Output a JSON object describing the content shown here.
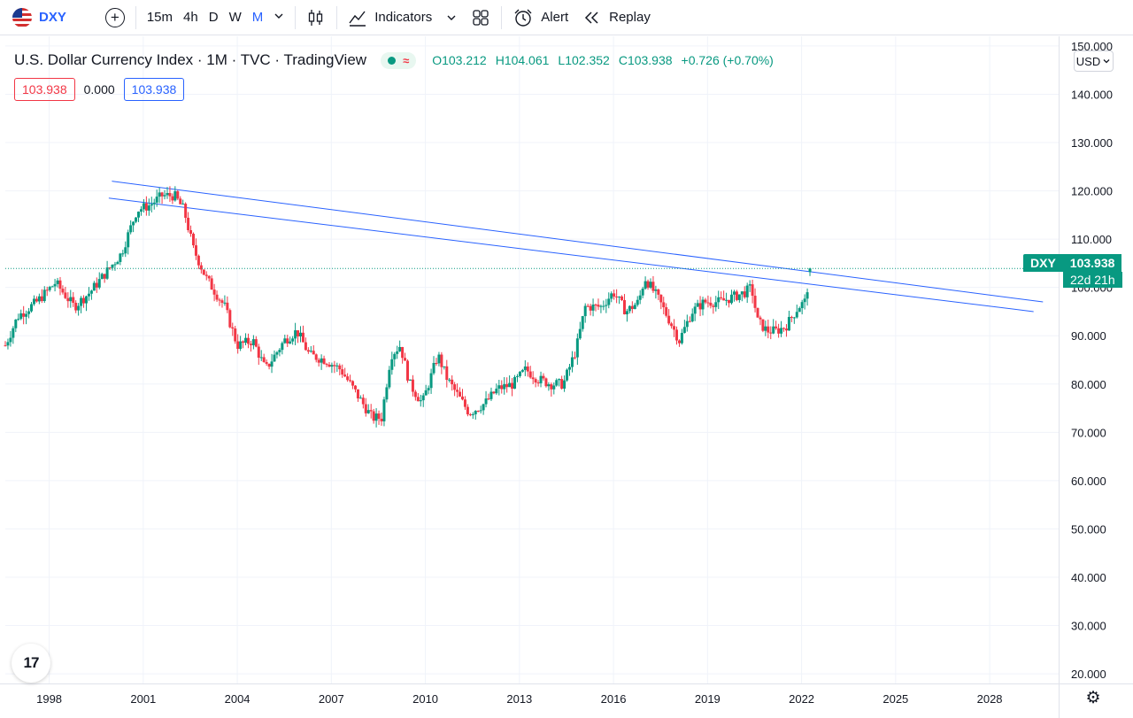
{
  "toolbar": {
    "symbol": "DXY",
    "intervals": [
      "15m",
      "4h",
      "D",
      "W",
      "M"
    ],
    "active_interval": "M",
    "indicators_label": "Indicators",
    "alert_label": "Alert",
    "replay_label": "Replay"
  },
  "legend": {
    "title": "U.S. Dollar Currency Index · 1M · TVC · TradingView",
    "open": "O103.212",
    "high": "H104.061",
    "low": "L102.352",
    "close": "C103.938",
    "change": "+0.726 (+0.70%)",
    "values": [
      "103.938",
      "0.000",
      "103.938"
    ]
  },
  "price_scale": {
    "currency": "USD",
    "labels": [
      "150.000",
      "140.000",
      "130.000",
      "120.000",
      "110.000",
      "100.000",
      "90.000",
      "80.000",
      "70.000",
      "60.000",
      "50.000",
      "40.000",
      "30.000",
      "20.000"
    ],
    "tag_symbol": "DXY",
    "tag_price": "103.938",
    "tag_countdown": "22d 21h"
  },
  "time_scale": {
    "labels": [
      "1998",
      "2001",
      "2004",
      "2007",
      "2010",
      "2013",
      "2016",
      "2019",
      "2022",
      "2025",
      "2028"
    ]
  },
  "colors": {
    "up": "#089981",
    "down": "#f23645",
    "trendline": "#2962ff",
    "grid": "#f0f3fa"
  },
  "chart_data": {
    "type": "candlestick",
    "symbol": "DXY",
    "interval": "1M",
    "ylim": [
      18,
      152
    ],
    "xlim": [
      1996.6,
      2030.2
    ],
    "last_price": 103.938,
    "anchors": [
      [
        1996.6,
        88
      ],
      [
        1997.0,
        94
      ],
      [
        1997.6,
        97
      ],
      [
        1998.2,
        101
      ],
      [
        1998.8,
        96
      ],
      [
        1999.3,
        99
      ],
      [
        1999.8,
        103
      ],
      [
        2000.3,
        107
      ],
      [
        2000.8,
        116
      ],
      [
        2001.2,
        117
      ],
      [
        2001.6,
        119
      ],
      [
        2002.0,
        119
      ],
      [
        2002.3,
        116
      ],
      [
        2002.6,
        108
      ],
      [
        2003.0,
        102
      ],
      [
        2003.6,
        96
      ],
      [
        2004.0,
        88
      ],
      [
        2004.5,
        89
      ],
      [
        2004.9,
        83
      ],
      [
        2005.5,
        89
      ],
      [
        2005.9,
        91
      ],
      [
        2006.3,
        86
      ],
      [
        2006.8,
        85
      ],
      [
        2007.3,
        83
      ],
      [
        2007.8,
        78
      ],
      [
        2008.3,
        73
      ],
      [
        2008.6,
        73
      ],
      [
        2008.9,
        86
      ],
      [
        2009.2,
        88
      ],
      [
        2009.5,
        80
      ],
      [
        2009.9,
        76
      ],
      [
        2010.4,
        86
      ],
      [
        2010.7,
        81
      ],
      [
        2011.0,
        78
      ],
      [
        2011.4,
        74
      ],
      [
        2011.9,
        76
      ],
      [
        2012.3,
        79
      ],
      [
        2012.8,
        80
      ],
      [
        2013.2,
        83
      ],
      [
        2013.6,
        81
      ],
      [
        2014.0,
        80
      ],
      [
        2014.4,
        80
      ],
      [
        2014.8,
        87
      ],
      [
        2015.1,
        96
      ],
      [
        2015.6,
        96
      ],
      [
        2016.0,
        99
      ],
      [
        2016.4,
        95
      ],
      [
        2016.8,
        97
      ],
      [
        2017.0,
        102
      ],
      [
        2017.4,
        98
      ],
      [
        2017.8,
        93
      ],
      [
        2018.1,
        89
      ],
      [
        2018.5,
        95
      ],
      [
        2018.9,
        97
      ],
      [
        2019.4,
        97
      ],
      [
        2019.8,
        98
      ],
      [
        2020.2,
        99
      ],
      [
        2020.4,
        100
      ],
      [
        2020.6,
        93
      ],
      [
        2020.9,
        91
      ],
      [
        2021.2,
        91
      ],
      [
        2021.5,
        92
      ],
      [
        2021.9,
        96
      ],
      [
        2022.1,
        97
      ],
      [
        2022.3,
        103.9
      ]
    ],
    "trendlines": [
      {
        "x1": 2000.0,
        "y1": 122.0,
        "x2": 2029.7,
        "y2": 97.0
      },
      {
        "x1": 1999.9,
        "y1": 118.5,
        "x2": 2029.4,
        "y2": 95.0
      }
    ]
  }
}
